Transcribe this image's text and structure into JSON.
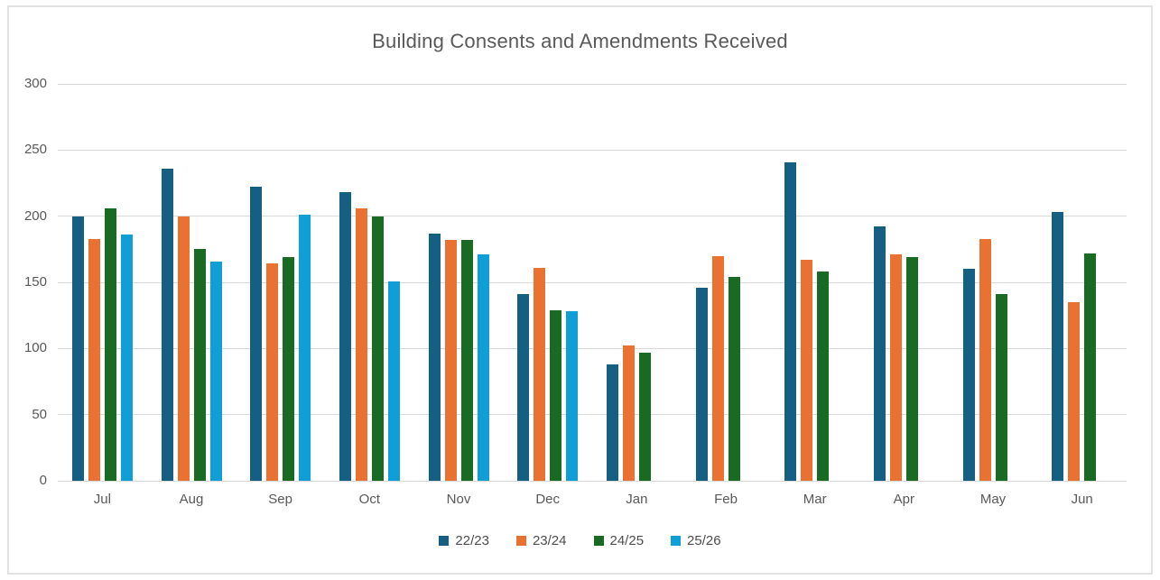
{
  "chart_data": {
    "type": "bar",
    "title": "Building Consents and Amendments Received",
    "categories": [
      "Jul",
      "Aug",
      "Sep",
      "Oct",
      "Nov",
      "Dec",
      "Jan",
      "Feb",
      "Mar",
      "Apr",
      "May",
      "Jun"
    ],
    "series": [
      {
        "name": "22/23",
        "color": "#156082",
        "values": [
          200,
          236,
          222,
          218,
          187,
          141,
          88,
          146,
          241,
          192,
          160,
          203
        ]
      },
      {
        "name": "23/24",
        "color": "#E97132",
        "values": [
          183,
          200,
          164,
          206,
          182,
          161,
          102,
          170,
          167,
          171,
          183,
          135
        ]
      },
      {
        "name": "24/25",
        "color": "#196B24",
        "values": [
          206,
          175,
          169,
          200,
          182,
          129,
          97,
          154,
          158,
          169,
          141,
          172
        ]
      },
      {
        "name": "25/26",
        "color": "#0F9ED5",
        "values": [
          186,
          166,
          201,
          151,
          171,
          128,
          null,
          null,
          null,
          null,
          null,
          null
        ]
      }
    ],
    "xlabel": "",
    "ylabel": "",
    "y_axis": {
      "min": 0,
      "max": 300,
      "step": 50,
      "tick_labels": [
        "0",
        "50",
        "100",
        "150",
        "200",
        "250",
        "300"
      ]
    },
    "grid": "horizontal",
    "legend_position": "bottom",
    "colors": {
      "title_text": "#595959",
      "axis_text": "#595959",
      "gridline": "#d9d9d9",
      "frame_border": "#e2e2e2",
      "background": "#ffffff"
    }
  }
}
